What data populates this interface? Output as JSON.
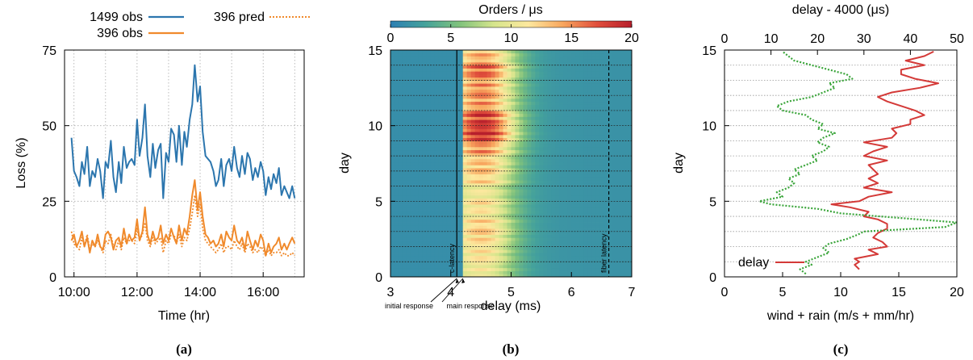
{
  "colors": {
    "obs1499": "#2c76ae",
    "obs396": "#f08a2c",
    "wind": "#3aa53a",
    "delay": "#d43a38"
  },
  "chart_data": [
    {
      "panel_label": "(a)",
      "type": "line",
      "xlabel": "Time (hr)",
      "ylabel": "Loss (%)",
      "xlim": [
        9.7,
        17.3
      ],
      "ylim": [
        0,
        75
      ],
      "xticks": [
        10,
        12,
        14,
        16
      ],
      "xtick_labels": [
        "10:00",
        "12:00",
        "14:00",
        "16:00"
      ],
      "yticks": [
        0,
        25,
        50,
        75
      ],
      "ytick_labels": [
        "0",
        "25",
        "50",
        "75"
      ],
      "grid": true,
      "legend_position": "top, outside",
      "series": [
        {
          "name": "1499 obs",
          "style": "solid",
          "x": [
            9.92,
            10.0,
            10.08,
            10.17,
            10.25,
            10.33,
            10.42,
            10.5,
            10.58,
            10.67,
            10.75,
            10.83,
            10.92,
            11.0,
            11.08,
            11.17,
            11.25,
            11.33,
            11.42,
            11.5,
            11.58,
            11.67,
            11.75,
            11.83,
            11.92,
            12.0,
            12.08,
            12.17,
            12.25,
            12.33,
            12.42,
            12.5,
            12.58,
            12.67,
            12.75,
            12.83,
            12.92,
            13.0,
            13.08,
            13.17,
            13.25,
            13.33,
            13.42,
            13.5,
            13.58,
            13.67,
            13.75,
            13.83,
            13.92,
            14.0,
            14.08,
            14.17,
            14.25,
            14.33,
            14.42,
            14.5,
            14.58,
            14.67,
            14.75,
            14.83,
            14.92,
            15.0,
            15.08,
            15.17,
            15.25,
            15.33,
            15.42,
            15.5,
            15.58,
            15.67,
            15.75,
            15.83,
            15.92,
            16.0,
            16.08,
            16.17,
            16.25,
            16.33,
            16.42,
            16.5,
            16.58,
            16.67,
            16.75,
            16.83,
            16.92,
            17.0
          ],
          "values": [
            46,
            35,
            33,
            30,
            38,
            34,
            43,
            30,
            35,
            33,
            39,
            35,
            26,
            38,
            36,
            45,
            33,
            28,
            38,
            31,
            43,
            36,
            38,
            39,
            37,
            52,
            40,
            46,
            57,
            40,
            33,
            44,
            36,
            42,
            44,
            26,
            41,
            38,
            49,
            47,
            38,
            50,
            37,
            48,
            43,
            52,
            57,
            70,
            58,
            63,
            48,
            40,
            39,
            38,
            35,
            30,
            32,
            39,
            30,
            37,
            39,
            35,
            43,
            36,
            33,
            40,
            34,
            41,
            39,
            32,
            36,
            33,
            38,
            35,
            27,
            33,
            29,
            34,
            31,
            36,
            27,
            30,
            28,
            26,
            30,
            26
          ]
        },
        {
          "name": "396 obs",
          "style": "solid",
          "x": [
            9.92,
            10.0,
            10.08,
            10.17,
            10.25,
            10.33,
            10.42,
            10.5,
            10.58,
            10.67,
            10.75,
            10.83,
            10.92,
            11.0,
            11.08,
            11.17,
            11.25,
            11.33,
            11.42,
            11.5,
            11.58,
            11.67,
            11.75,
            11.83,
            11.92,
            12.0,
            12.08,
            12.17,
            12.25,
            12.33,
            12.42,
            12.5,
            12.58,
            12.67,
            12.75,
            12.83,
            12.92,
            13.0,
            13.08,
            13.17,
            13.25,
            13.33,
            13.42,
            13.5,
            13.58,
            13.67,
            13.75,
            13.83,
            13.92,
            14.0,
            14.08,
            14.17,
            14.25,
            14.33,
            14.42,
            14.5,
            14.58,
            14.67,
            14.75,
            14.83,
            14.92,
            15.0,
            15.08,
            15.17,
            15.25,
            15.33,
            15.42,
            15.5,
            15.58,
            15.67,
            15.75,
            15.83,
            15.92,
            16.0,
            16.08,
            16.17,
            16.25,
            16.33,
            16.42,
            16.5,
            16.58,
            16.67,
            16.75,
            16.83,
            16.92,
            17.0
          ],
          "values": [
            12,
            14,
            10,
            12,
            15,
            10,
            13,
            8,
            12,
            10,
            14,
            10,
            9,
            14,
            15,
            13,
            9,
            12,
            13,
            10,
            16,
            11,
            14,
            12,
            13,
            19,
            12,
            15,
            23,
            14,
            11,
            15,
            12,
            13,
            17,
            11,
            14,
            12,
            16,
            13,
            11,
            17,
            12,
            16,
            14,
            20,
            27,
            32,
            22,
            28,
            20,
            14,
            13,
            11,
            12,
            10,
            11,
            14,
            10,
            15,
            13,
            12,
            17,
            12,
            11,
            13,
            9,
            15,
            12,
            9,
            12,
            10,
            14,
            12,
            7,
            11,
            8,
            10,
            11,
            13,
            9,
            11,
            9,
            11,
            13,
            11
          ]
        },
        {
          "name": "396 pred",
          "style": "dotted",
          "x": [
            9.92,
            10.0,
            10.08,
            10.17,
            10.25,
            10.33,
            10.42,
            10.5,
            10.58,
            10.67,
            10.75,
            10.83,
            10.92,
            11.0,
            11.08,
            11.17,
            11.25,
            11.33,
            11.42,
            11.5,
            11.58,
            11.67,
            11.75,
            11.83,
            11.92,
            12.0,
            12.08,
            12.17,
            12.25,
            12.33,
            12.42,
            12.5,
            12.58,
            12.67,
            12.75,
            12.83,
            12.92,
            13.0,
            13.08,
            13.17,
            13.25,
            13.33,
            13.42,
            13.5,
            13.58,
            13.67,
            13.75,
            13.83,
            13.92,
            14.0,
            14.08,
            14.17,
            14.25,
            14.33,
            14.42,
            14.5,
            14.58,
            14.67,
            14.75,
            14.83,
            14.92,
            15.0,
            15.08,
            15.17,
            15.25,
            15.33,
            15.42,
            15.5,
            15.58,
            15.67,
            15.75,
            15.83,
            15.92,
            16.0,
            16.08,
            16.17,
            16.25,
            16.33,
            16.42,
            16.5,
            16.58,
            16.67,
            16.75,
            16.83,
            16.92,
            17.0
          ],
          "values": [
            15,
            11,
            10,
            9,
            13,
            10,
            14,
            9,
            11,
            10,
            12,
            10,
            8,
            12,
            11,
            14,
            10,
            9,
            12,
            9,
            13,
            11,
            12,
            12,
            11,
            16,
            12,
            14,
            18,
            12,
            10,
            13,
            11,
            12,
            13,
            8,
            12,
            11,
            14,
            14,
            11,
            14,
            10,
            13,
            12,
            16,
            21,
            27,
            20,
            24,
            16,
            12,
            11,
            10,
            9,
            8,
            9,
            11,
            8,
            10,
            10,
            9,
            12,
            10,
            9,
            11,
            8,
            11,
            10,
            8,
            9,
            8,
            10,
            9,
            7,
            9,
            7,
            8,
            8,
            9,
            7,
            8,
            7,
            7,
            8,
            7
          ]
        }
      ]
    },
    {
      "panel_label": "(b)",
      "type": "heatmap",
      "xlabel": "delay (ms)",
      "ylabel": "day",
      "xlim": [
        3,
        7
      ],
      "ylim": [
        0,
        15
      ],
      "xticks": [
        3,
        4,
        5,
        6,
        7
      ],
      "yticks": [
        0,
        5,
        10,
        15
      ],
      "colorbar": {
        "title": "Orders / μs",
        "ticks": [
          0,
          5,
          10,
          15,
          20
        ],
        "range": [
          0,
          20
        ],
        "stops": [
          "#2d7fb3",
          "#45a29b",
          "#80c27c",
          "#d6e58c",
          "#fde89e",
          "#f8a65e",
          "#e04e3c",
          "#b71f2c"
        ]
      },
      "day_divider_lines": [
        1,
        2,
        3,
        4,
        5,
        6,
        7,
        8,
        9,
        10,
        11,
        12,
        13,
        14
      ],
      "response_onset_ms": [
        4.2,
        4.2,
        4.2,
        4.2,
        4.2,
        4.2,
        4.2,
        4.2,
        4.2,
        4.2,
        4.2,
        4.2,
        4.2,
        4.2,
        4.2
      ],
      "daily_peak_intensity": [
        10,
        11,
        12,
        12,
        11,
        10,
        12,
        13,
        15,
        20,
        19,
        15,
        15,
        17,
        14
      ],
      "vertical_markers": [
        {
          "label": "c-latency",
          "x": 4.1,
          "style": "solid"
        },
        {
          "label": "fiber latency",
          "x": 6.62,
          "style": "dashed"
        }
      ],
      "annotations": [
        {
          "label": "initial response",
          "x": 4.1
        },
        {
          "label": "main response",
          "x": 4.2
        }
      ]
    },
    {
      "panel_label": "(c)",
      "type": "line",
      "ylabel": "day",
      "ylim": [
        0,
        15
      ],
      "yticks": [
        0,
        5,
        10,
        15
      ],
      "x_bottom": {
        "label": "wind + rain (m/s + mm/hr)",
        "range": [
          0,
          20
        ],
        "ticks": [
          0,
          5,
          10,
          15,
          20
        ]
      },
      "x_top": {
        "label": "delay - 4000 (μs)",
        "range": [
          0,
          50
        ],
        "ticks": [
          0,
          10,
          20,
          30,
          40,
          50
        ]
      },
      "day_divider_lines": [
        1,
        2,
        3,
        4,
        5,
        6,
        7,
        8,
        9,
        10,
        11,
        12,
        13,
        14
      ],
      "series": [
        {
          "name": "delay",
          "axis": "top",
          "style": "solid",
          "day": [
            0.5,
            0.8,
            1.0,
            1.2,
            1.5,
            1.8,
            2.0,
            2.3,
            2.6,
            2.9,
            3.2,
            3.5,
            3.8,
            4.0,
            4.3,
            4.6,
            4.8,
            5.0,
            5.3,
            5.6,
            5.9,
            6.2,
            6.5,
            6.8,
            7.1,
            7.4,
            7.7,
            8.0,
            8.3,
            8.6,
            8.9,
            9.2,
            9.5,
            9.8,
            10.1,
            10.4,
            10.7,
            11.0,
            11.3,
            11.6,
            11.9,
            12.2,
            12.5,
            12.8,
            13.1,
            13.4,
            13.7,
            14.0,
            14.3,
            14.6,
            14.9
          ],
          "values": [
            29,
            28,
            29,
            28,
            33,
            31,
            35,
            34,
            32,
            33,
            35,
            35,
            33,
            30,
            31,
            27,
            23,
            29,
            31,
            36,
            30,
            33,
            31,
            33,
            32,
            31,
            35,
            30,
            32,
            35,
            30,
            36,
            37,
            36,
            40,
            40,
            43,
            41,
            38,
            35,
            33,
            36,
            42,
            46,
            41,
            38,
            38,
            43,
            39,
            43,
            45
          ]
        },
        {
          "name": "wind + rain",
          "axis": "bottom",
          "style": "dotted",
          "day": [
            0.2,
            0.5,
            0.8,
            1.0,
            1.3,
            1.6,
            1.9,
            2.2,
            2.5,
            2.8,
            3.0,
            3.3,
            3.6,
            3.9,
            4.2,
            4.5,
            4.8,
            5.0,
            5.3,
            5.6,
            5.9,
            6.2,
            6.5,
            6.8,
            7.1,
            7.4,
            7.7,
            8.0,
            8.3,
            8.6,
            8.9,
            9.2,
            9.5,
            9.8,
            10.1,
            10.4,
            10.7,
            11.0,
            11.3,
            11.6,
            11.9,
            12.2,
            12.5,
            12.8,
            13.1,
            13.4,
            13.7,
            14.0,
            14.3,
            14.6,
            14.9
          ],
          "values": [
            7.0,
            6.5,
            7.5,
            7.0,
            8.0,
            9.0,
            8.5,
            9.0,
            10.5,
            11.5,
            12.0,
            19.0,
            20.0,
            15.0,
            10.0,
            8.0,
            4.0,
            3.0,
            5.0,
            4.5,
            5.5,
            6.0,
            5.5,
            6.5,
            6.0,
            7.0,
            8.0,
            7.5,
            8.5,
            9.0,
            8.0,
            8.5,
            9.5,
            8.0,
            8.5,
            7.5,
            7.0,
            5.0,
            4.5,
            5.5,
            7.5,
            8.5,
            9.5,
            9.0,
            11.0,
            10.5,
            9.0,
            7.5,
            6.0,
            5.5,
            5.0
          ]
        }
      ]
    }
  ]
}
